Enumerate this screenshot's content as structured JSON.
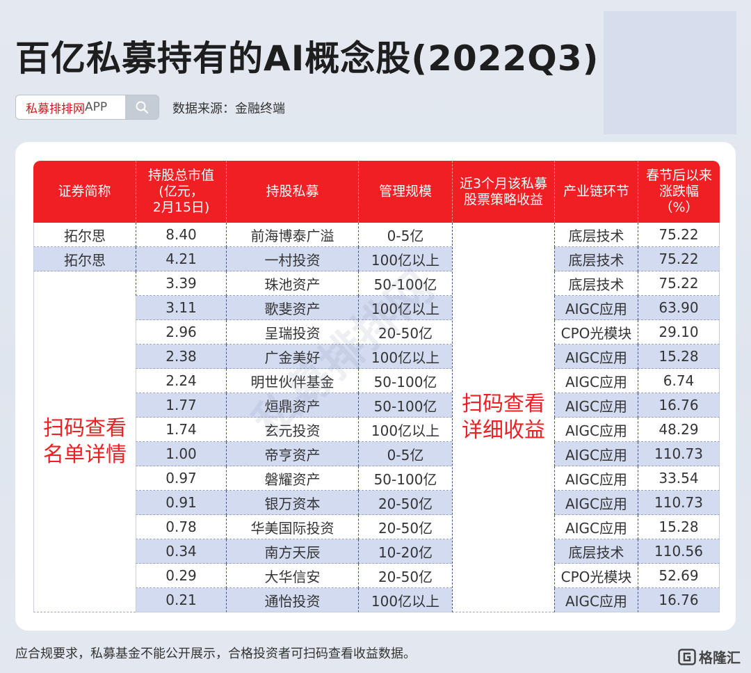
{
  "title": "百亿私募持有的AI概念股(2022Q3)",
  "search": {
    "brand": "私募排排网",
    "suffix": "APP"
  },
  "source": "数据来源：金融终端",
  "table": {
    "headers": {
      "stock": "证券简称",
      "value_l1": "持股总市值",
      "value_l2": "(亿元，",
      "value_l3": "2月15日)",
      "fund": "持股私募",
      "scale": "管理规模",
      "return_l1": "近3个月该私募",
      "return_l2": "股票策略收益",
      "chain": "产业链环节",
      "change_l1": "春节后以来",
      "change_l2": "涨跌幅",
      "change_l3": "（%）"
    },
    "merged_stock_l1": "扫码查看",
    "merged_stock_l2": "名单详情",
    "merged_return_l1": "扫码查看",
    "merged_return_l2": "详细收益",
    "rows": [
      {
        "stock": "拓尔思",
        "value": "8.40",
        "fund": "前海博泰广溢",
        "scale": "0-5亿",
        "chain": "底层技术",
        "change": "75.22"
      },
      {
        "stock": "拓尔思",
        "value": "4.21",
        "fund": "一村投资",
        "scale": "100亿以上",
        "chain": "底层技术",
        "change": "75.22"
      },
      {
        "stock": "",
        "value": "3.39",
        "fund": "珠池资产",
        "scale": "50-100亿",
        "chain": "底层技术",
        "change": "75.22"
      },
      {
        "stock": "",
        "value": "3.11",
        "fund": "歌斐资产",
        "scale": "100亿以上",
        "chain": "AIGC应用",
        "change": "63.90"
      },
      {
        "stock": "",
        "value": "2.96",
        "fund": "呈瑞投资",
        "scale": "20-50亿",
        "chain": "CPO光模块",
        "change": "29.10"
      },
      {
        "stock": "",
        "value": "2.38",
        "fund": "广金美好",
        "scale": "100亿以上",
        "chain": "AIGC应用",
        "change": "15.28"
      },
      {
        "stock": "",
        "value": "2.24",
        "fund": "明世伙伴基金",
        "scale": "50-100亿",
        "chain": "AIGC应用",
        "change": "6.74"
      },
      {
        "stock": "",
        "value": "1.77",
        "fund": "烜鼎资产",
        "scale": "50-100亿",
        "chain": "AIGC应用",
        "change": "16.76"
      },
      {
        "stock": "",
        "value": "1.74",
        "fund": "玄元投资",
        "scale": "100亿以上",
        "chain": "AIGC应用",
        "change": "48.29"
      },
      {
        "stock": "",
        "value": "1.00",
        "fund": "帝亨资产",
        "scale": "0-5亿",
        "chain": "AIGC应用",
        "change": "110.73"
      },
      {
        "stock": "",
        "value": "0.97",
        "fund": "磐耀资产",
        "scale": "50-100亿",
        "chain": "AIGC应用",
        "change": "33.54"
      },
      {
        "stock": "",
        "value": "0.91",
        "fund": "银万资本",
        "scale": "20-50亿",
        "chain": "AIGC应用",
        "change": "110.73"
      },
      {
        "stock": "",
        "value": "0.78",
        "fund": "华美国际投资",
        "scale": "20-50亿",
        "chain": "AIGC应用",
        "change": "15.28"
      },
      {
        "stock": "",
        "value": "0.34",
        "fund": "南方天辰",
        "scale": "10-20亿",
        "chain": "底层技术",
        "change": "110.56"
      },
      {
        "stock": "",
        "value": "0.29",
        "fund": "大华信安",
        "scale": "20-50亿",
        "chain": "CPO光模块",
        "change": "52.69"
      },
      {
        "stock": "",
        "value": "0.21",
        "fund": "通怡投资",
        "scale": "100亿以上",
        "chain": "AIGC应用",
        "change": "16.76"
      }
    ]
  },
  "footer": "应合规要求，私募基金不能公开展示，合格投资者可扫码查看收益数据。",
  "logo": {
    "text": "格隆汇",
    "icon": "gelonghui-logo-icon"
  },
  "watermark": "私募排排网"
}
